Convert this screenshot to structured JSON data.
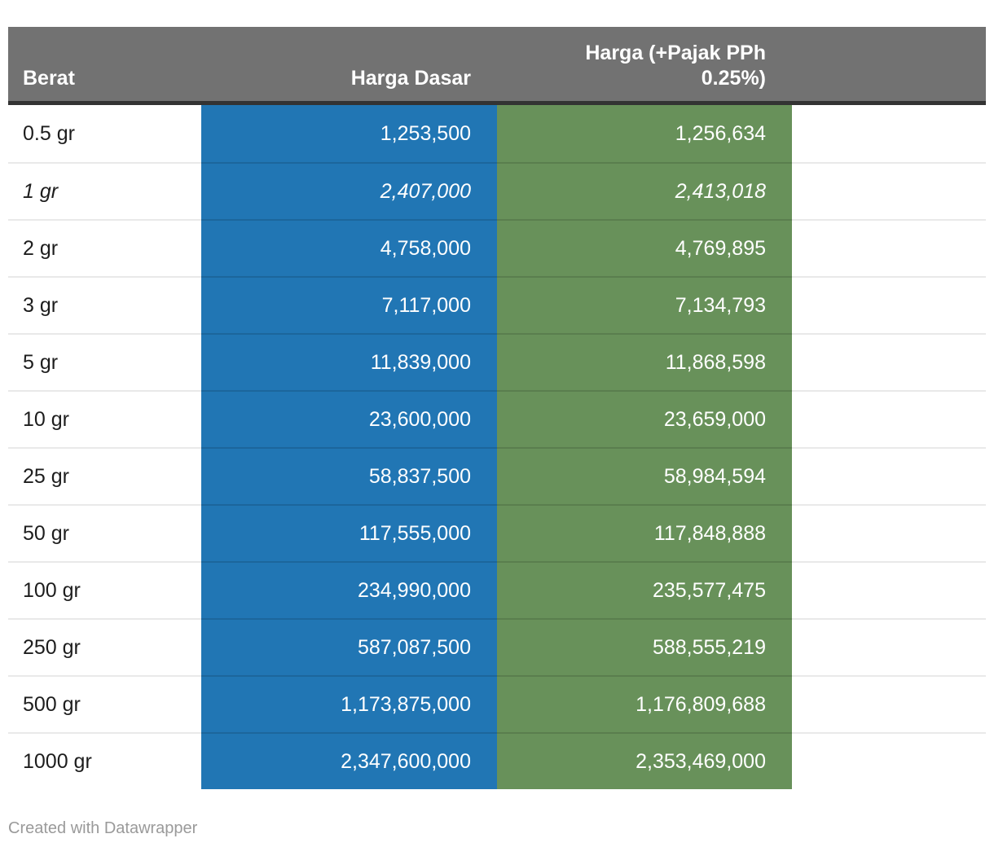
{
  "chart_data": {
    "type": "table",
    "columns": [
      {
        "label": "Berat",
        "align": "left"
      },
      {
        "label": "Harga Dasar",
        "align": "right"
      },
      {
        "label": "Harga (+Pajak PPh 0.25%)",
        "label_lines": [
          "Harga (+Pajak PPh",
          "0.25%)"
        ],
        "align": "right"
      },
      {
        "label": "",
        "align": "right"
      }
    ],
    "rows": [
      {
        "berat": "0.5 gr",
        "harga_dasar": 1253500,
        "harga_pajak": 1256634,
        "italic": false
      },
      {
        "berat": "1 gr",
        "harga_dasar": 2407000,
        "harga_pajak": 2413018,
        "italic": true
      },
      {
        "berat": "2 gr",
        "harga_dasar": 4758000,
        "harga_pajak": 4769895,
        "italic": false
      },
      {
        "berat": "3 gr",
        "harga_dasar": 7117000,
        "harga_pajak": 7134793,
        "italic": false
      },
      {
        "berat": "5 gr",
        "harga_dasar": 11839000,
        "harga_pajak": 11868598,
        "italic": false
      },
      {
        "berat": "10 gr",
        "harga_dasar": 23600000,
        "harga_pajak": 23659000,
        "italic": false
      },
      {
        "berat": "25 gr",
        "harga_dasar": 58837500,
        "harga_pajak": 58984594,
        "italic": false
      },
      {
        "berat": "50 gr",
        "harga_dasar": 117555000,
        "harga_pajak": 117848888,
        "italic": false
      },
      {
        "berat": "100 gr",
        "harga_dasar": 234990000,
        "harga_pajak": 235577475,
        "italic": false
      },
      {
        "berat": "250 gr",
        "harga_dasar": 587087500,
        "harga_pajak": 588555219,
        "italic": false
      },
      {
        "berat": "500 gr",
        "harga_dasar": 1173875000,
        "harga_pajak": 1176809688,
        "italic": false
      },
      {
        "berat": "1000 gr",
        "harga_dasar": 2347600000,
        "harga_pajak": 2353469000,
        "italic": false
      }
    ],
    "number_format": "thousands-comma",
    "layout": {
      "header_position": "top",
      "grid": "row-dividers",
      "legend": "none"
    }
  },
  "footer": {
    "attribution": "Created with Datawrapper"
  },
  "colors": {
    "header_bg": "#727272",
    "header_rule": "#333333",
    "column_blue": "#2176b4",
    "column_green": "#68915a",
    "row_divider": "#e9e9e9",
    "label_text": "#1d1d1d",
    "cell_text": "#ffffff",
    "attribution_text": "#9a9a9a",
    "page_bg": "#ffffff"
  }
}
